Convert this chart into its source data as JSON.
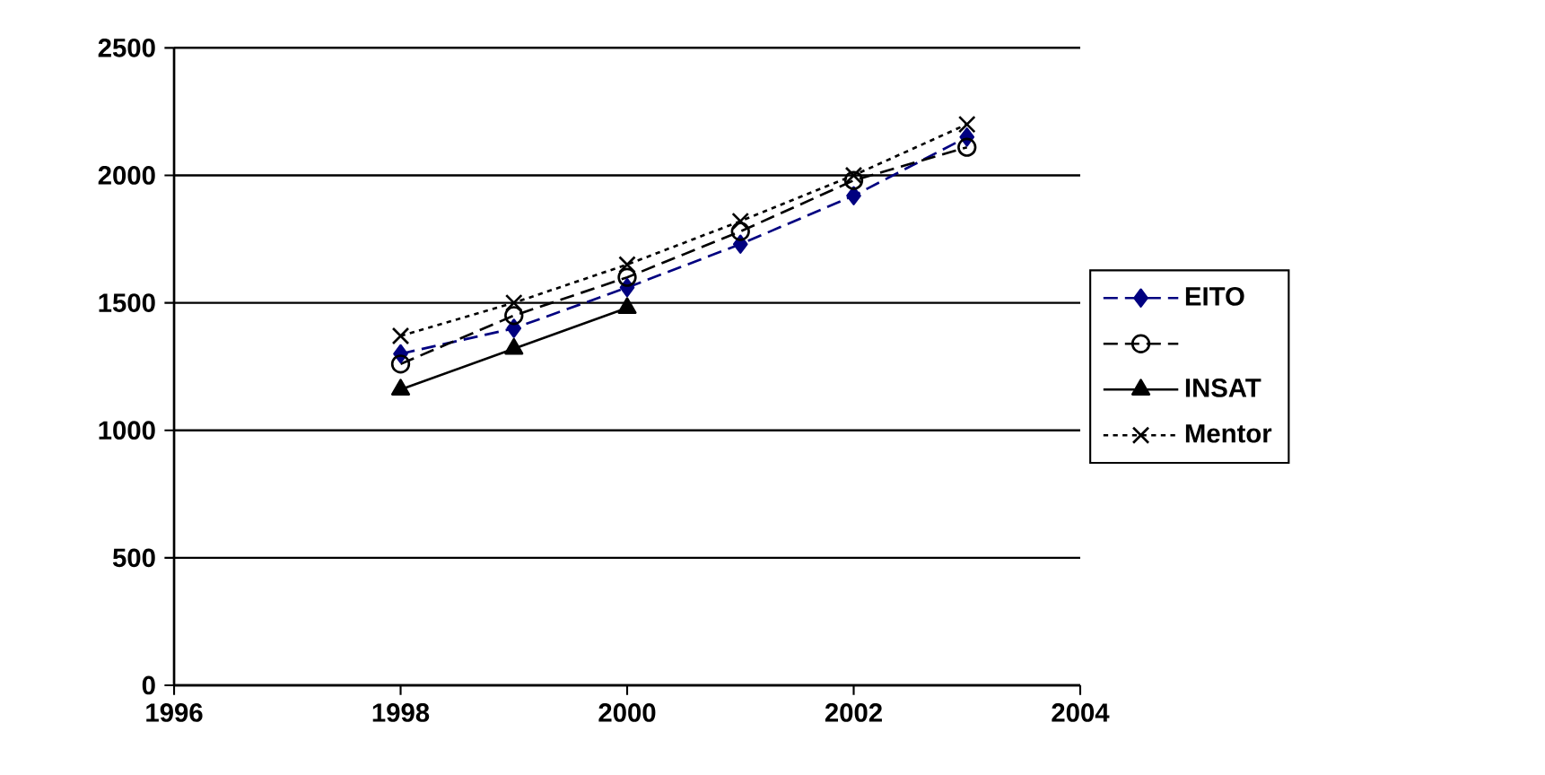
{
  "chart_data": {
    "type": "line",
    "x": [
      1998,
      1999,
      2000,
      2001,
      2002,
      2003
    ],
    "series": [
      {
        "name": "EITO",
        "color": "#000080",
        "marker": "diamond",
        "line_style": "dashed",
        "values": [
          1300,
          1400,
          1560,
          1730,
          1920,
          2150
        ]
      },
      {
        "color": "#000000",
        "marker": "circle",
        "line_style": "dashed",
        "values": [
          1260,
          1450,
          1600,
          1780,
          1980,
          2110
        ]
      },
      {
        "name": "INSAT",
        "color": "#000000",
        "marker": "triangle",
        "line_style": "solid",
        "x": [
          1998,
          1999,
          2000
        ],
        "values": [
          1160,
          1320,
          1480
        ]
      },
      {
        "name": "Mentor",
        "color": "#000000",
        "marker": "cross",
        "line_style": "dotted",
        "values": [
          1370,
          1500,
          1650,
          1820,
          2000,
          2200
        ]
      }
    ],
    "xlim": [
      1996,
      2004
    ],
    "xticks": [
      1996,
      1998,
      2000,
      2002,
      2004
    ],
    "ylim": [
      0,
      2500
    ],
    "yticks": [
      0,
      500,
      1000,
      1500,
      2000,
      2500
    ],
    "grid": "y",
    "legend": "right"
  }
}
